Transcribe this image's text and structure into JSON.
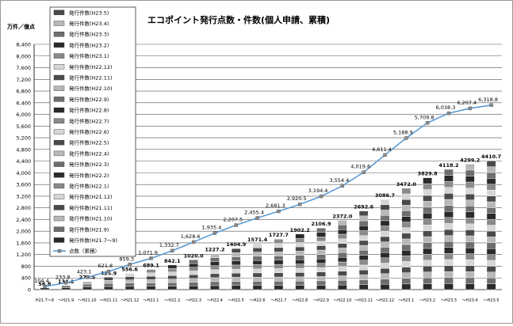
{
  "chart_data": {
    "type": "bar",
    "title": "エコポイント発行点数・件数(個人申請、累積)",
    "ylabel": "万件／億点",
    "ylim": [
      0,
      8400
    ],
    "yticks": [
      0,
      400,
      800,
      1200,
      1600,
      2000,
      2400,
      2800,
      3200,
      3600,
      4000,
      4400,
      4800,
      5200,
      5600,
      6000,
      6400,
      6800,
      7200,
      7600,
      8000,
      8400
    ],
    "yticks_labels": [
      "0",
      "400",
      "800",
      "1,200",
      "1,600",
      "2,000",
      "2,400",
      "2,800",
      "3,200",
      "3,600",
      "4,000",
      "4,400",
      "4,800",
      "5,200",
      "5,600",
      "6,000",
      "6,400",
      "6,800",
      "7,200",
      "7,600",
      "8,000",
      "8,400"
    ],
    "grid": true,
    "legend_position": "top-left",
    "categories": [
      "H21.7～9",
      "～H21.9",
      "～H21.10",
      "～H21.11",
      "～H21.12",
      "～H22.1",
      "～H22.2",
      "～H22.3",
      "～H22.4",
      "～H22.5",
      "～H22.6",
      "～H22.7",
      "～H22.8",
      "～H22.9",
      "～H22.10",
      "～H22.11",
      "～H22.12",
      "～H23.1",
      "～H23.2",
      "～H23.3",
      "～H23.4",
      "～H23.5"
    ],
    "bar_series": {
      "name": "発行件数",
      "values": [
        56.8,
        134.2,
        278.5,
        425.9,
        556.6,
        689.1,
        842.1,
        1020.0,
        1227.2,
        1404.9,
        1571.4,
        1727.7,
        1902.2,
        2106.9,
        2372.0,
        2692.6,
        3086.7,
        3472.0,
        3829.8,
        4118.2,
        4299.2,
        4410.7
      ],
      "labels": [
        "56.8",
        "134.2",
        "278.5",
        "425.9",
        "556.6",
        "689.1",
        "842.1",
        "1020.0",
        "1227.2",
        "1404.9",
        "1571.4",
        "1727.7",
        "1902.2",
        "2106.9",
        "2372.0",
        "2692.6",
        "3086.7",
        "3472.0",
        "3829.8",
        "4118.2",
        "4299.2",
        "4410.7"
      ]
    },
    "line_series": {
      "name": "点数（累積）",
      "values": [
        104.4,
        233.8,
        423.1,
        621.8,
        859.3,
        1071.9,
        1332.7,
        1628.6,
        1935.4,
        2207.5,
        2455.4,
        2681.3,
        2920.5,
        3194.4,
        3554.4,
        4019.6,
        4611.4,
        5188.9,
        5709.8,
        6038.3,
        6207.4,
        6318.8
      ],
      "labels": [
        "104.4",
        "233.8",
        "423.1",
        "621.8",
        "859.3",
        "1,071.9",
        "1,332.7",
        "1,628.6",
        "1,935.4",
        "2,207.5",
        "2,455.4",
        "2,681.3",
        "2,920.5",
        "3,194.4",
        "3,554.4",
        "4,019.6",
        "4,611.4",
        "5,188.9",
        "5,709.8",
        "6,038.3",
        "6,207.4",
        "6,318.8"
      ],
      "color": "#5b9bd5"
    },
    "legend": [
      "発行件数(H23.5)",
      "発行件数(H23.4)",
      "発行件数(H23.3)",
      "発行件数(H23.2)",
      "発行件数(H23.1)",
      "発行件数(H22.12)",
      "発行件数(H22.11)",
      "発行件数(H22.10)",
      "発行件数(H22.9)",
      "発行件数(H22.8)",
      "発行件数(H22.7)",
      "発行件数(H22.6)",
      "発行件数(H22.5)",
      "発行件数(H22.4)",
      "発行件数(H22.3)",
      "発行件数(H22.2)",
      "発行件数(H22.1)",
      "発行件数(H21.12)",
      "発行件数(H21.11)",
      "発行件数(H21.10)",
      "発行件数(H21.9)",
      "発行件数(H21.7～9)",
      "点数（累積）"
    ]
  }
}
